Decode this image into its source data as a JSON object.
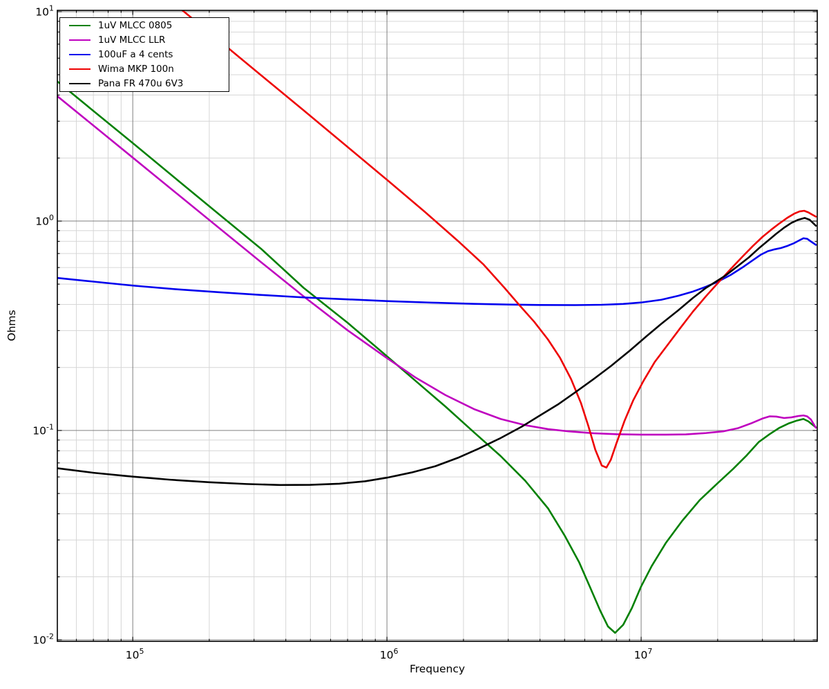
{
  "figure": {
    "background": "#ffffff",
    "frame_color": "#000000",
    "grid_major_color": "#7f7f7f",
    "grid_minor_color": "#d6d6d6"
  },
  "chart_data": {
    "type": "line",
    "title": "",
    "xlabel": "Frequency",
    "ylabel": "Ohms",
    "x_scale": "log",
    "y_scale": "log",
    "xlim": [
      50500,
      49300000
    ],
    "ylim": [
      0.00984,
      10.15
    ],
    "grid": "on",
    "legend_position": "upper-left",
    "line_width": 2.6,
    "x_ticks": [
      {
        "value": 100000,
        "base": "10",
        "exp": "5"
      },
      {
        "value": 1000000,
        "base": "10",
        "exp": "6"
      },
      {
        "value": 10000000,
        "base": "10",
        "exp": "7"
      }
    ],
    "y_ticks": [
      {
        "value": 10,
        "base": "10",
        "exp": "1"
      },
      {
        "value": 1,
        "base": "10",
        "exp": "0"
      },
      {
        "value": 0.1,
        "base": "10",
        "exp": "-1"
      },
      {
        "value": 0.01,
        "base": "10",
        "exp": "-2"
      }
    ],
    "series": [
      {
        "name": "1uV MLCC 0805",
        "color": "#008000",
        "points": [
          [
            50500,
            4.65
          ],
          [
            70000,
            3.36
          ],
          [
            100000,
            2.36
          ],
          [
            150000,
            1.57
          ],
          [
            220000,
            1.07
          ],
          [
            320000,
            0.737
          ],
          [
            470000,
            0.48
          ],
          [
            700000,
            0.327
          ],
          [
            980000,
            0.231
          ],
          [
            1300000,
            0.172
          ],
          [
            1700000,
            0.13
          ],
          [
            2200000,
            0.098
          ],
          [
            2800000,
            0.0755
          ],
          [
            3500000,
            0.0575
          ],
          [
            4300000,
            0.0425
          ],
          [
            5000000,
            0.0315
          ],
          [
            5700000,
            0.0235
          ],
          [
            6300000,
            0.0178
          ],
          [
            6900000,
            0.0138
          ],
          [
            7400000,
            0.0116
          ],
          [
            7900000,
            0.0108
          ],
          [
            8500000,
            0.0118
          ],
          [
            9200000,
            0.0142
          ],
          [
            10000000,
            0.018
          ],
          [
            11000000,
            0.0225
          ],
          [
            12500000,
            0.029
          ],
          [
            14500000,
            0.037
          ],
          [
            17000000,
            0.0465
          ],
          [
            20000000,
            0.056
          ],
          [
            23000000,
            0.0655
          ],
          [
            26000000,
            0.076
          ],
          [
            29000000,
            0.088
          ],
          [
            32000000,
            0.096
          ],
          [
            35000000,
            0.103
          ],
          [
            38000000,
            0.108
          ],
          [
            41000000,
            0.1115
          ],
          [
            43500000,
            0.1135
          ],
          [
            45500000,
            0.1105
          ],
          [
            47000000,
            0.107
          ],
          [
            48700000,
            0.1035
          ]
        ]
      },
      {
        "name": "1uV MLCC LLR",
        "color": "#bf00bf",
        "points": [
          [
            50500,
            3.95
          ],
          [
            70000,
            2.86
          ],
          [
            100000,
            2.01
          ],
          [
            150000,
            1.345
          ],
          [
            220000,
            0.921
          ],
          [
            320000,
            0.636
          ],
          [
            470000,
            0.437
          ],
          [
            700000,
            0.301
          ],
          [
            980000,
            0.2255
          ],
          [
            1300000,
            0.1785
          ],
          [
            1700000,
            0.1475
          ],
          [
            2200000,
            0.1265
          ],
          [
            2800000,
            0.1135
          ],
          [
            3500000,
            0.106
          ],
          [
            4300000,
            0.1015
          ],
          [
            5200000,
            0.099
          ],
          [
            6500000,
            0.097
          ],
          [
            8000000,
            0.096
          ],
          [
            10000000,
            0.0955
          ],
          [
            12500000,
            0.0955
          ],
          [
            15000000,
            0.0958
          ],
          [
            18000000,
            0.0972
          ],
          [
            21000000,
            0.099
          ],
          [
            24000000,
            0.1025
          ],
          [
            27000000,
            0.108
          ],
          [
            30000000,
            0.114
          ],
          [
            32000000,
            0.1168
          ],
          [
            34000000,
            0.1165
          ],
          [
            36500000,
            0.1147
          ],
          [
            39000000,
            0.1155
          ],
          [
            41500000,
            0.1172
          ],
          [
            43500000,
            0.118
          ],
          [
            45000000,
            0.1168
          ],
          [
            46500000,
            0.113
          ],
          [
            48700000,
            0.103
          ]
        ]
      },
      {
        "name": "100uF a 4 cents",
        "color": "#0000ee",
        "points": [
          [
            50500,
            0.535
          ],
          [
            70000,
            0.514
          ],
          [
            100000,
            0.492
          ],
          [
            150000,
            0.472
          ],
          [
            220000,
            0.457
          ],
          [
            320000,
            0.444
          ],
          [
            470000,
            0.432
          ],
          [
            700000,
            0.423
          ],
          [
            1000000,
            0.415
          ],
          [
            1500000,
            0.408
          ],
          [
            2200000,
            0.4025
          ],
          [
            3000000,
            0.3995
          ],
          [
            4000000,
            0.3975
          ],
          [
            5500000,
            0.397
          ],
          [
            7000000,
            0.3985
          ],
          [
            8500000,
            0.402
          ],
          [
            10000000,
            0.4085
          ],
          [
            12000000,
            0.421
          ],
          [
            14000000,
            0.44
          ],
          [
            16000000,
            0.461
          ],
          [
            18000000,
            0.486
          ],
          [
            20000000,
            0.513
          ],
          [
            22500000,
            0.553
          ],
          [
            25000000,
            0.6
          ],
          [
            27500000,
            0.65
          ],
          [
            29500000,
            0.69
          ],
          [
            31500000,
            0.718
          ],
          [
            33500000,
            0.733
          ],
          [
            35500000,
            0.744
          ],
          [
            37500000,
            0.76
          ],
          [
            40000000,
            0.785
          ],
          [
            42000000,
            0.81
          ],
          [
            43500000,
            0.828
          ],
          [
            45000000,
            0.823
          ],
          [
            46500000,
            0.8
          ],
          [
            48700000,
            0.77
          ]
        ]
      },
      {
        "name": "Wima MKP 100n",
        "color": "#ee0000",
        "points": [
          [
            120000,
            13.3
          ],
          [
            160000,
            9.95
          ],
          [
            220000,
            7.24
          ],
          [
            320000,
            4.97
          ],
          [
            470000,
            3.38
          ],
          [
            700000,
            2.26
          ],
          [
            1000000,
            1.575
          ],
          [
            1400000,
            1.115
          ],
          [
            1900000,
            0.805
          ],
          [
            2400000,
            0.62
          ],
          [
            2900000,
            0.48
          ],
          [
            3300000,
            0.4
          ],
          [
            3800000,
            0.33
          ],
          [
            4300000,
            0.272
          ],
          [
            4800000,
            0.222
          ],
          [
            5300000,
            0.176
          ],
          [
            5800000,
            0.135
          ],
          [
            6200000,
            0.105
          ],
          [
            6600000,
            0.081
          ],
          [
            7000000,
            0.068
          ],
          [
            7300000,
            0.0665
          ],
          [
            7600000,
            0.0725
          ],
          [
            8000000,
            0.087
          ],
          [
            8600000,
            0.111
          ],
          [
            9300000,
            0.139
          ],
          [
            10200000,
            0.172
          ],
          [
            11300000,
            0.212
          ],
          [
            12700000,
            0.256
          ],
          [
            14300000,
            0.31
          ],
          [
            16000000,
            0.37
          ],
          [
            18000000,
            0.438
          ],
          [
            20000000,
            0.505
          ],
          [
            22500000,
            0.59
          ],
          [
            25000000,
            0.675
          ],
          [
            27500000,
            0.76
          ],
          [
            30000000,
            0.84
          ],
          [
            32500000,
            0.91
          ],
          [
            35000000,
            0.975
          ],
          [
            37500000,
            1.035
          ],
          [
            40000000,
            1.085
          ],
          [
            42000000,
            1.112
          ],
          [
            43800000,
            1.12
          ],
          [
            45500000,
            1.1
          ],
          [
            47000000,
            1.075
          ],
          [
            48700000,
            1.05
          ]
        ]
      },
      {
        "name": "Pana FR 470u 6V3",
        "color": "#000000",
        "points": [
          [
            50500,
            0.066
          ],
          [
            70000,
            0.0628
          ],
          [
            100000,
            0.0602
          ],
          [
            140000,
            0.0582
          ],
          [
            200000,
            0.0566
          ],
          [
            280000,
            0.0555
          ],
          [
            380000,
            0.0549
          ],
          [
            500000,
            0.055
          ],
          [
            650000,
            0.0557
          ],
          [
            820000,
            0.0572
          ],
          [
            1000000,
            0.0595
          ],
          [
            1250000,
            0.063
          ],
          [
            1550000,
            0.0675
          ],
          [
            1900000,
            0.074
          ],
          [
            2300000,
            0.082
          ],
          [
            2800000,
            0.092
          ],
          [
            3400000,
            0.1045
          ],
          [
            4000000,
            0.118
          ],
          [
            4700000,
            0.133
          ],
          [
            5500000,
            0.152
          ],
          [
            6500000,
            0.176
          ],
          [
            7600000,
            0.203
          ],
          [
            9000000,
            0.24
          ],
          [
            10500000,
            0.282
          ],
          [
            12000000,
            0.323
          ],
          [
            14000000,
            0.375
          ],
          [
            16000000,
            0.43
          ],
          [
            18000000,
            0.48
          ],
          [
            19500000,
            0.51
          ],
          [
            21500000,
            0.55
          ],
          [
            24000000,
            0.61
          ],
          [
            26500000,
            0.67
          ],
          [
            29000000,
            0.74
          ],
          [
            31500000,
            0.805
          ],
          [
            34000000,
            0.87
          ],
          [
            36500000,
            0.93
          ],
          [
            39000000,
            0.98
          ],
          [
            41500000,
            1.015
          ],
          [
            44000000,
            1.035
          ],
          [
            46000000,
            1.015
          ],
          [
            48700000,
            0.95
          ]
        ]
      }
    ]
  }
}
